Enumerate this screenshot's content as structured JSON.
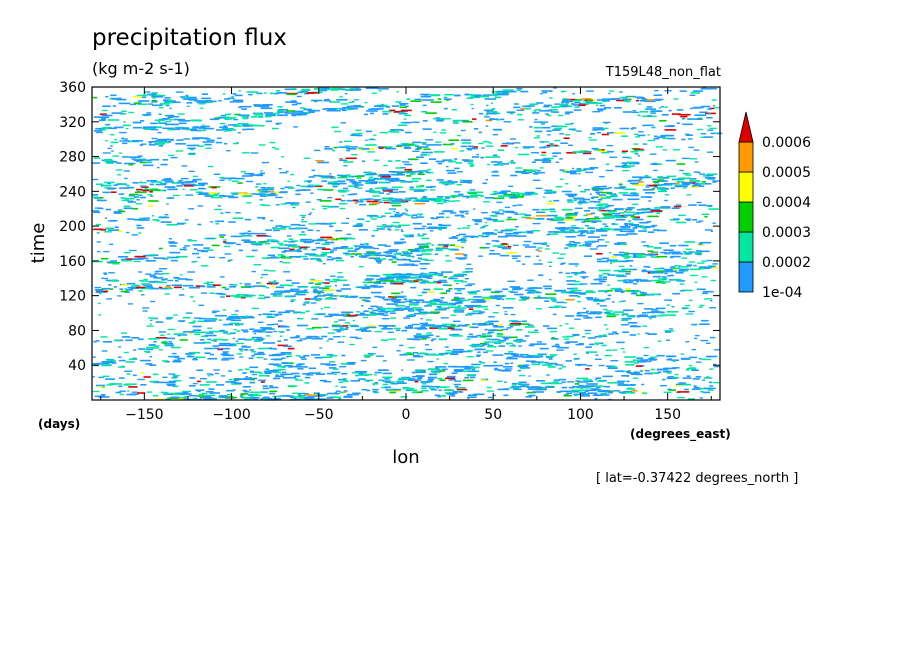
{
  "chart_data": {
    "type": "heatmap",
    "title": "precipitation flux",
    "units": "(kg m-2 s-1)",
    "dataset": "T159L48_non_flat",
    "xlabel": "lon",
    "ylabel": "time",
    "x_units": "(degrees_east)",
    "y_units": "(days)",
    "xlim": [
      -180,
      180
    ],
    "ylim": [
      0,
      360
    ],
    "x_ticks": [
      -150,
      -100,
      -50,
      0,
      50,
      100,
      150
    ],
    "y_ticks": [
      40,
      80,
      120,
      160,
      200,
      240,
      280,
      320,
      360
    ],
    "levels": [
      "1e-04",
      "0.0002",
      "0.0003",
      "0.0004",
      "0.0005",
      "0.0006"
    ],
    "colors": [
      "#1f9bff",
      "#00e8a0",
      "#00d000",
      "#ffff00",
      "#ff9a00",
      "#e00000"
    ],
    "colorbar_extend": "max",
    "footnote": "[ lat=-0.37422 degrees_north ]"
  }
}
